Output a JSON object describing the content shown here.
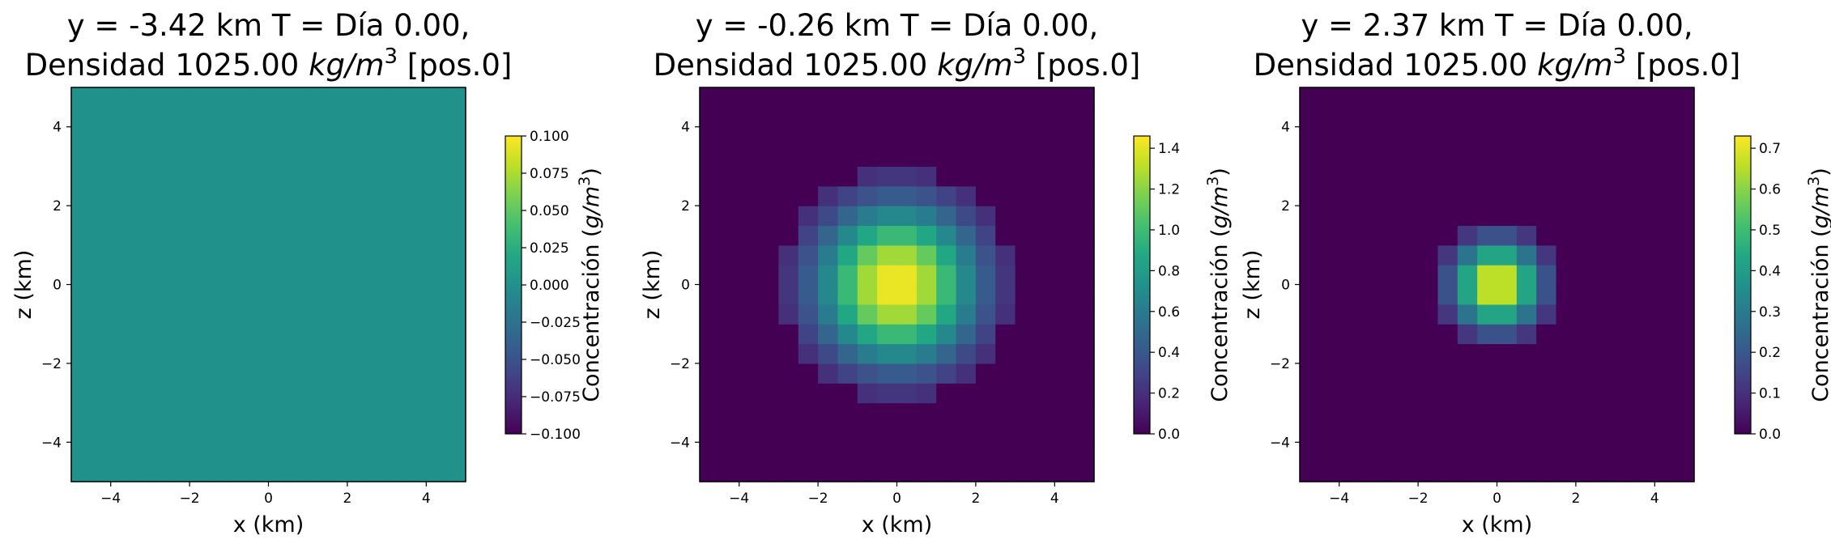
{
  "chart_data": [
    {
      "type": "heatmap",
      "title_line1": "y = -3.42 km  T = Día 0.00,",
      "title_line2_prefix": "Densidad 1025.00 ",
      "title_line2_unit": "kg/m",
      "title_line2_exp": "3",
      "title_line2_suffix": " [pos.0]",
      "xlabel": "x (km)",
      "ylabel": "z (km)",
      "xlim": [
        -5,
        5
      ],
      "ylim": [
        -5,
        5
      ],
      "xticks": [
        -4,
        -2,
        0,
        2,
        4
      ],
      "yticks": [
        -4,
        -2,
        0,
        2,
        4
      ],
      "xtick_labels": [
        "−4",
        "−2",
        "0",
        "2",
        "4"
      ],
      "ytick_labels": [
        "−4",
        "−2",
        "0",
        "2",
        "4"
      ],
      "colormap": "viridis",
      "grid": "20x20 cells of 0.5 km, centered at origin",
      "colorbar": {
        "label_prefix": "Concentración (",
        "label_unit": "g/m",
        "label_exp": "3",
        "label_suffix": ")",
        "vmin": -0.1,
        "vmax": 0.1,
        "ticks": [
          -0.1,
          -0.075,
          -0.05,
          -0.025,
          0.0,
          0.025,
          0.05,
          0.075,
          0.1
        ],
        "tick_labels": [
          "−0.100",
          "−0.075",
          "−0.050",
          "−0.025",
          "0.000",
          "0.025",
          "0.050",
          "0.075",
          "0.100"
        ]
      },
      "peak": 0.0,
      "radius": 0,
      "uniform_value": 0.0
    },
    {
      "type": "heatmap",
      "title_line1": "y = -0.26 km  T = Día 0.00,",
      "title_line2_prefix": "Densidad 1025.00 ",
      "title_line2_unit": "kg/m",
      "title_line2_exp": "3",
      "title_line2_suffix": " [pos.0]",
      "xlabel": "x (km)",
      "ylabel": "z (km)",
      "xlim": [
        -5,
        5
      ],
      "ylim": [
        -5,
        5
      ],
      "xticks": [
        -4,
        -2,
        0,
        2,
        4
      ],
      "yticks": [
        -4,
        -2,
        0,
        2,
        4
      ],
      "xtick_labels": [
        "−4",
        "−2",
        "0",
        "2",
        "4"
      ],
      "ytick_labels": [
        "−4",
        "−2",
        "0",
        "2",
        "4"
      ],
      "colormap": "viridis",
      "grid": "20x20 cells of 0.5 km, centered at origin",
      "colorbar": {
        "label_prefix": "Concentración (",
        "label_unit": "g/m",
        "label_exp": "3",
        "label_suffix": ")",
        "vmin": 0.0,
        "vmax": 1.46,
        "ticks": [
          0.0,
          0.2,
          0.4,
          0.6,
          0.8,
          1.0,
          1.2,
          1.4
        ],
        "tick_labels": [
          "0.0",
          "0.2",
          "0.4",
          "0.6",
          "0.8",
          "1.0",
          "1.2",
          "1.4"
        ]
      },
      "peak": 1.46,
      "radius": 3.0,
      "uniform_value": null
    },
    {
      "type": "heatmap",
      "title_line1": "y = 2.37 km  T = Día 0.00,",
      "title_line2_prefix": "Densidad 1025.00 ",
      "title_line2_unit": "kg/m",
      "title_line2_exp": "3",
      "title_line2_suffix": " [pos.0]",
      "xlabel": "x (km)",
      "ylabel": "z (km)",
      "xlim": [
        -5,
        5
      ],
      "ylim": [
        -5,
        5
      ],
      "xticks": [
        -4,
        -2,
        0,
        2,
        4
      ],
      "yticks": [
        -4,
        -2,
        0,
        2,
        4
      ],
      "xtick_labels": [
        "−4",
        "−2",
        "0",
        "2",
        "4"
      ],
      "ytick_labels": [
        "−4",
        "−2",
        "0",
        "2",
        "4"
      ],
      "colormap": "viridis",
      "grid": "20x20 cells of 0.5 km, centered at origin",
      "colorbar": {
        "label_prefix": "Concentración (",
        "label_unit": "g/m",
        "label_exp": "3",
        "label_suffix": ")",
        "vmin": 0.0,
        "vmax": 0.73,
        "ticks": [
          0.0,
          0.1,
          0.2,
          0.3,
          0.4,
          0.5,
          0.6,
          0.7
        ],
        "tick_labels": [
          "0.0",
          "0.1",
          "0.2",
          "0.3",
          "0.4",
          "0.5",
          "0.6",
          "0.7"
        ]
      },
      "peak": 0.73,
      "radius": 1.6,
      "uniform_value": null
    }
  ]
}
